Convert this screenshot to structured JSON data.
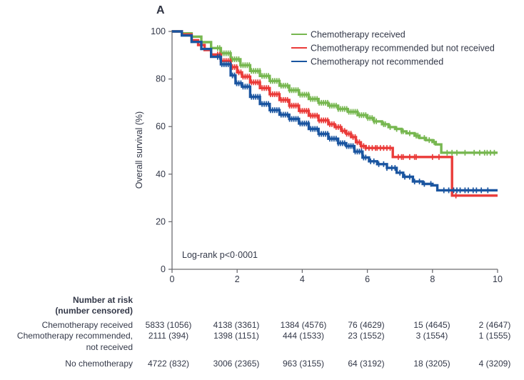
{
  "panel_label": "A",
  "annotation": "Log-rank p<0·0001",
  "colors": {
    "axis": "#6d6d72",
    "text": "#333848",
    "green": "#77B750",
    "red": "#EA3B39",
    "blue": "#1A55A0"
  },
  "chart_data": {
    "type": "line",
    "subtype": "kaplan-meier-step",
    "title": "",
    "xlabel": "",
    "ylabel": "Overall survival (%)",
    "xlim": [
      0,
      10
    ],
    "ylim": [
      0,
      100
    ],
    "x_ticks": [
      0,
      2,
      4,
      6,
      8,
      10
    ],
    "y_ticks": [
      0,
      20,
      40,
      60,
      80,
      100
    ],
    "grid": false,
    "legend_position": "top-right",
    "annotation": "Log-rank p<0·0001",
    "series": [
      {
        "name": "Chemotherapy received",
        "color": "#77B750",
        "points": [
          [
            0,
            100
          ],
          [
            0.3,
            99.2
          ],
          [
            0.6,
            97.8
          ],
          [
            0.9,
            95.5
          ],
          [
            1.2,
            93
          ],
          [
            1.5,
            90.8
          ],
          [
            1.8,
            88.3
          ],
          [
            2.1,
            85.8
          ],
          [
            2.4,
            83.4
          ],
          [
            2.7,
            81.3
          ],
          [
            3.0,
            79.2
          ],
          [
            3.3,
            77.2
          ],
          [
            3.6,
            75.3
          ],
          [
            3.9,
            73.4
          ],
          [
            4.2,
            71.6
          ],
          [
            4.5,
            70
          ],
          [
            4.8,
            68.8
          ],
          [
            5.1,
            67.4
          ],
          [
            5.4,
            66.2
          ],
          [
            5.7,
            64.8
          ],
          [
            6.0,
            63.6
          ],
          [
            6.2,
            62.2
          ],
          [
            6.45,
            61
          ],
          [
            6.65,
            59.8
          ],
          [
            6.85,
            59
          ],
          [
            7.05,
            58
          ],
          [
            7.2,
            57.2
          ],
          [
            7.45,
            56.2
          ],
          [
            7.6,
            55.2
          ],
          [
            7.8,
            54.3
          ],
          [
            8.0,
            53.5
          ],
          [
            8.1,
            52.5
          ],
          [
            8.27,
            49
          ],
          [
            10,
            49
          ]
        ],
        "censor_marks": [
          6.5,
          6.55,
          6.7,
          6.9,
          7.05,
          7.1,
          7.3,
          7.5,
          7.55,
          7.75,
          7.9,
          8.05,
          8.45,
          8.6,
          8.75,
          9.0,
          9.28,
          9.45,
          9.6,
          9.68,
          9.78,
          9.9
        ],
        "dense_censor_range": {
          "from": 1.4,
          "to": 6.3,
          "step": 0.065
        }
      },
      {
        "name": "Chemotherapy recommended but not received",
        "color": "#EA3B39",
        "points": [
          [
            0,
            100
          ],
          [
            0.3,
            98.7
          ],
          [
            0.6,
            96.3
          ],
          [
            0.8,
            94.3
          ],
          [
            1.0,
            92.2
          ],
          [
            1.2,
            90.3
          ],
          [
            1.5,
            87.6
          ],
          [
            1.8,
            85
          ],
          [
            2.0,
            82.8
          ],
          [
            2.15,
            81
          ],
          [
            2.4,
            78.6
          ],
          [
            2.7,
            76.2
          ],
          [
            3.0,
            73.6
          ],
          [
            3.3,
            71.2
          ],
          [
            3.6,
            68.8
          ],
          [
            3.9,
            66.6
          ],
          [
            4.2,
            64.6
          ],
          [
            4.5,
            62.6
          ],
          [
            4.8,
            61
          ],
          [
            5.0,
            59.8
          ],
          [
            5.2,
            58.2
          ],
          [
            5.35,
            57
          ],
          [
            5.5,
            55.6
          ],
          [
            5.65,
            53.4
          ],
          [
            5.8,
            51.8
          ],
          [
            5.95,
            51
          ],
          [
            6.78,
            47.2
          ],
          [
            8.6,
            31
          ],
          [
            10,
            31
          ]
        ],
        "censor_marks": [
          5.95,
          6.05,
          6.15,
          6.25,
          6.3,
          6.4,
          6.5,
          6.6,
          6.7,
          6.95,
          7.05,
          7.1,
          7.3,
          7.45,
          7.5,
          8.0,
          8.2,
          8.72
        ],
        "dense_censor_range": {
          "from": 1.4,
          "to": 5.9,
          "step": 0.065
        }
      },
      {
        "name": "Chemotherapy not recommended",
        "color": "#1A55A0",
        "points": [
          [
            0,
            100
          ],
          [
            0.3,
            98.3
          ],
          [
            0.6,
            95.6
          ],
          [
            0.9,
            92.6
          ],
          [
            1.2,
            89.3
          ],
          [
            1.5,
            86.2
          ],
          [
            1.8,
            81.5
          ],
          [
            1.95,
            78.2
          ],
          [
            2.15,
            76.8
          ],
          [
            2.4,
            72.5
          ],
          [
            2.7,
            69.5
          ],
          [
            3.0,
            66.9
          ],
          [
            3.3,
            65
          ],
          [
            3.6,
            63.2
          ],
          [
            3.9,
            61.3
          ],
          [
            4.2,
            59
          ],
          [
            4.5,
            56.9
          ],
          [
            4.8,
            54.9
          ],
          [
            5.1,
            53
          ],
          [
            5.35,
            51.8
          ],
          [
            5.6,
            49.5
          ],
          [
            5.85,
            47
          ],
          [
            6.05,
            45.4
          ],
          [
            6.3,
            44.2
          ],
          [
            6.6,
            42.6
          ],
          [
            6.9,
            40.6
          ],
          [
            7.1,
            38.9
          ],
          [
            7.4,
            36.9
          ],
          [
            7.7,
            35.9
          ],
          [
            8.0,
            35.3
          ],
          [
            8.15,
            33.2
          ],
          [
            10,
            33.2
          ]
        ],
        "censor_marks": [
          6.1,
          6.2,
          6.35,
          6.5,
          6.6,
          6.75,
          6.85,
          7.0,
          7.15,
          7.3,
          7.45,
          7.6,
          7.75,
          7.95,
          8.35,
          8.5,
          8.65,
          8.75,
          8.85,
          9.0,
          9.1,
          9.25,
          9.35,
          9.5,
          9.7
        ],
        "dense_censor_range": {
          "from": 1.4,
          "to": 6.0,
          "step": 0.065
        }
      }
    ]
  },
  "risk_table": {
    "header_lines": [
      "Number at risk",
      "(number censored)"
    ],
    "rows": [
      {
        "label_lines": [
          "Chemotherapy received"
        ],
        "values": [
          "5833 (1056)",
          "4138 (3361)",
          "1384 (4576)",
          "76 (4629)",
          "15 (4645)",
          "2 (4647)"
        ]
      },
      {
        "label_lines": [
          "Chemotherapy recommended,",
          "not received"
        ],
        "values": [
          "2111 (394)",
          "1398 (1151)",
          "444 (1533)",
          "23 (1552)",
          "3 (1554)",
          "1 (1555)"
        ]
      },
      {
        "label_lines": [
          "No chemotherapy"
        ],
        "values": [
          "4722 (832)",
          "3006 (2365)",
          "963 (3155)",
          "64 (3192)",
          "18 (3205)",
          "4 (3209)"
        ]
      }
    ]
  }
}
